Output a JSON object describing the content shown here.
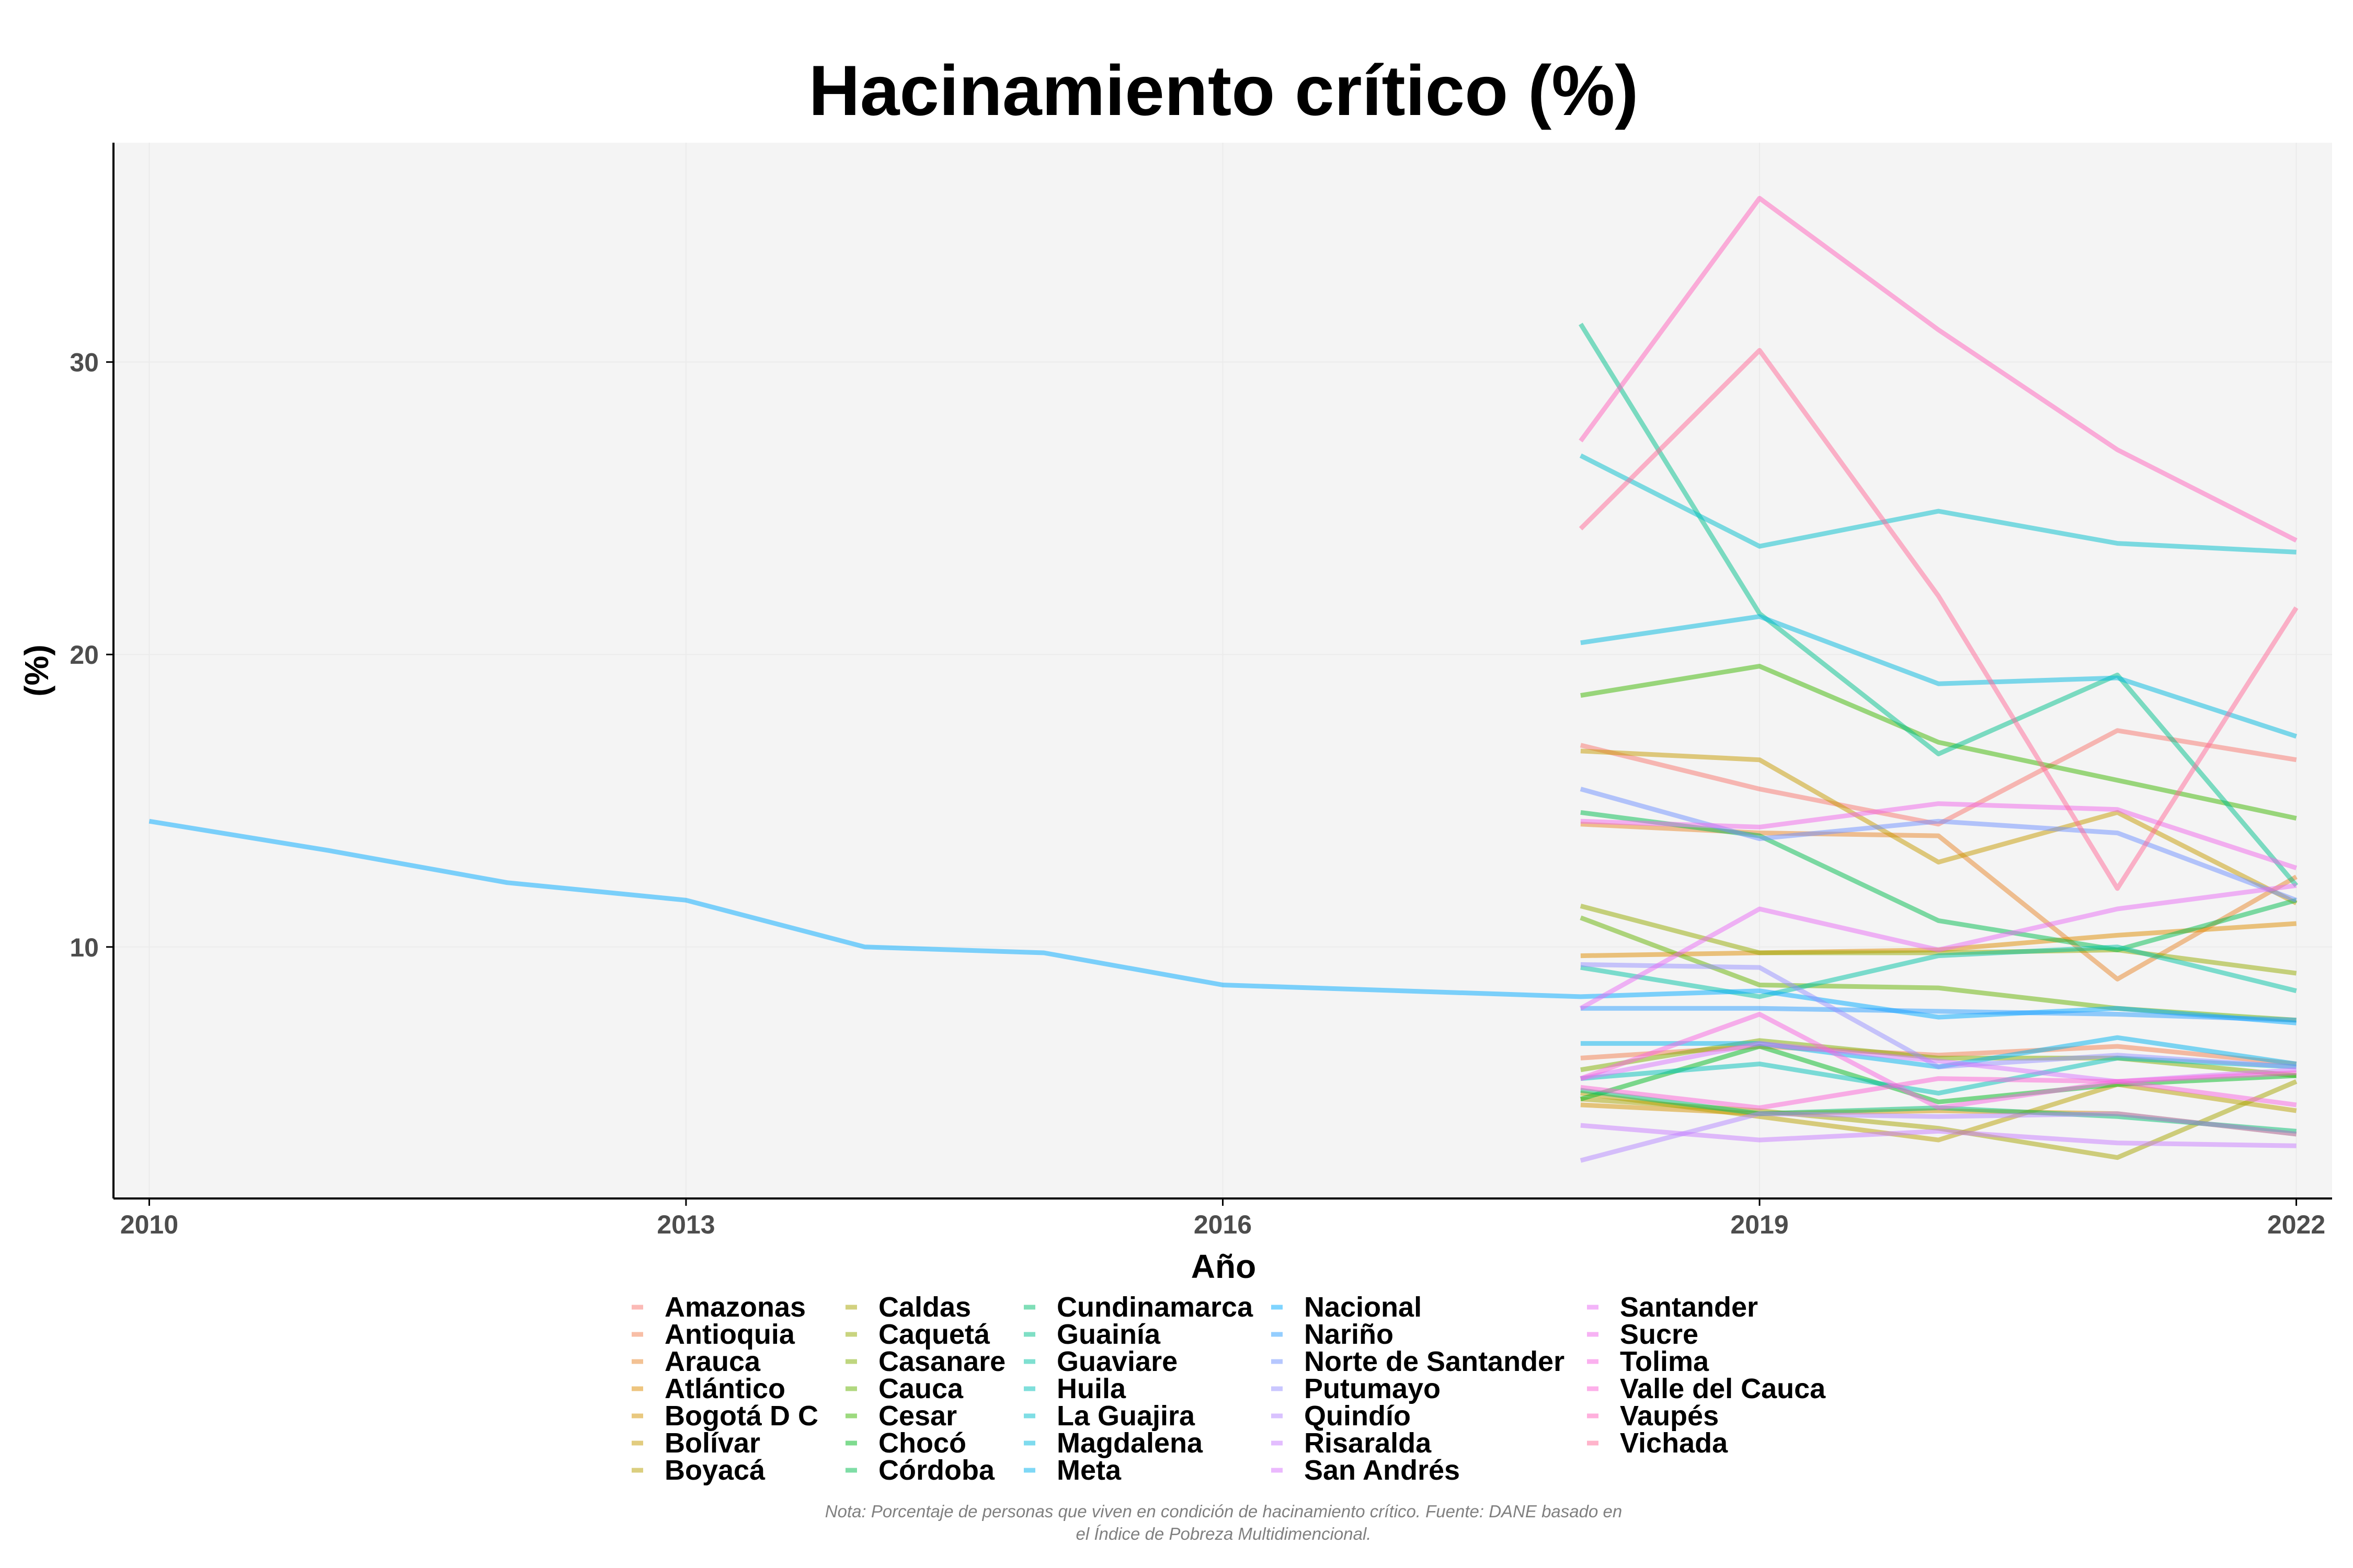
{
  "chart_data": {
    "type": "line",
    "title": "Hacinamiento crítico (%)",
    "xlabel": "Año",
    "ylabel": "(%)",
    "xlim": [
      2009.8,
      2022.2
    ],
    "ylim": [
      1.4,
      37.5
    ],
    "x_ticks": [
      "2010",
      "2013",
      "2016",
      "2019",
      "2022"
    ],
    "y_ticks": [
      "10",
      "20",
      "30"
    ],
    "grid": true,
    "legend_position": "bottom",
    "caption": [
      "Nota: Porcentaje de personas que viven en condición de hacinamiento crítico. Fuente: DANE basado en",
      "el Índice de Pobreza Multidimencional."
    ],
    "series": [
      {
        "name": "Amazonas",
        "color": "#F8766D",
        "x": [
          2018,
          2019,
          2020,
          2021,
          2022
        ],
        "y": [
          16.9,
          15.4,
          14.2,
          17.4,
          16.4
        ]
      },
      {
        "name": "Antioquia",
        "color": "#F17E4E",
        "x": [
          2018,
          2019,
          2020,
          2021,
          2022
        ],
        "y": [
          6.2,
          6.6,
          6.3,
          6.6,
          6.0
        ]
      },
      {
        "name": "Arauca",
        "color": "#E8862A",
        "x": [
          2018,
          2019,
          2020,
          2021,
          2022
        ],
        "y": [
          14.2,
          13.9,
          13.8,
          8.9,
          12.4
        ]
      },
      {
        "name": "Atlántico",
        "color": "#DE8C00",
        "x": [
          2018,
          2019,
          2020,
          2021,
          2022
        ],
        "y": [
          9.7,
          9.8,
          9.9,
          10.4,
          10.8
        ]
      },
      {
        "name": "Bogotá D C",
        "color": "#D39200",
        "x": [
          2018,
          2019,
          2020,
          2021,
          2022
        ],
        "y": [
          4.6,
          4.3,
          4.4,
          4.3,
          3.6
        ]
      },
      {
        "name": "Bolívar",
        "color": "#C59900",
        "x": [
          2018,
          2019,
          2020,
          2021,
          2022
        ],
        "y": [
          16.7,
          16.4,
          12.9,
          14.6,
          11.5
        ]
      },
      {
        "name": "Boyacá",
        "color": "#B79F00",
        "x": [
          2018,
          2019,
          2020,
          2021,
          2022
        ],
        "y": [
          5.0,
          4.2,
          3.4,
          5.3,
          4.4
        ]
      },
      {
        "name": "Caldas",
        "color": "#A6A300",
        "x": [
          2018,
          2019,
          2020,
          2021,
          2022
        ],
        "y": [
          4.8,
          4.4,
          3.8,
          2.8,
          5.4
        ]
      },
      {
        "name": "Caquetá",
        "color": "#94A900",
        "x": [
          2018,
          2019,
          2020,
          2021,
          2022
        ],
        "y": [
          11.4,
          9.8,
          9.8,
          9.9,
          9.1
        ]
      },
      {
        "name": "Casanare",
        "color": "#7FAE00",
        "x": [
          2018,
          2019,
          2020,
          2021,
          2022
        ],
        "y": [
          5.8,
          6.8,
          6.2,
          6.2,
          5.6
        ]
      },
      {
        "name": "Cauca",
        "color": "#64B200",
        "x": [
          2018,
          2019,
          2020,
          2021,
          2022
        ],
        "y": [
          11.0,
          8.7,
          8.6,
          7.9,
          7.5
        ]
      },
      {
        "name": "Cesar",
        "color": "#3CB500",
        "x": [
          2018,
          2019,
          2020,
          2021,
          2022
        ],
        "y": [
          18.6,
          19.6,
          17.0,
          15.7,
          14.4
        ]
      },
      {
        "name": "Chocó",
        "color": "#00B81F",
        "x": [
          2018,
          2019,
          2020,
          2021,
          2022
        ],
        "y": [
          4.8,
          6.6,
          4.7,
          5.3,
          5.6
        ]
      },
      {
        "name": "Córdoba",
        "color": "#00BB4E",
        "x": [
          2018,
          2019,
          2020,
          2021,
          2022
        ],
        "y": [
          14.6,
          13.8,
          10.9,
          9.9,
          11.6
        ]
      },
      {
        "name": "Cundinamarca",
        "color": "#00BE70",
        "x": [
          2018,
          2019,
          2020,
          2021,
          2022
        ],
        "y": [
          5.1,
          4.3,
          4.5,
          4.2,
          3.7
        ]
      },
      {
        "name": "Guainía",
        "color": "#00C08B",
        "x": [
          2018,
          2019,
          2020,
          2021,
          2022
        ],
        "y": [
          31.3,
          21.4,
          16.6,
          19.3,
          12.1
        ]
      },
      {
        "name": "Guaviare",
        "color": "#00C1A3",
        "x": [
          2018,
          2019,
          2020,
          2021,
          2022
        ],
        "y": [
          9.3,
          8.3,
          9.7,
          10.0,
          8.5
        ]
      },
      {
        "name": "Huila",
        "color": "#00C0B8",
        "x": [
          2018,
          2019,
          2020,
          2021,
          2022
        ],
        "y": [
          5.5,
          6.0,
          5.0,
          6.2,
          5.9
        ]
      },
      {
        "name": "La Guajira",
        "color": "#00BDCC",
        "x": [
          2018,
          2019,
          2020,
          2021,
          2022
        ],
        "y": [
          26.8,
          23.7,
          24.9,
          23.8,
          23.5
        ]
      },
      {
        "name": "Magdalena",
        "color": "#00B8DE",
        "x": [
          2018,
          2019,
          2020,
          2021,
          2022
        ],
        "y": [
          20.4,
          21.3,
          19.0,
          19.2,
          17.2
        ]
      },
      {
        "name": "Meta",
        "color": "#00B2EE",
        "x": [
          2018,
          2019,
          2020,
          2021,
          2022
        ],
        "y": [
          6.7,
          6.7,
          5.9,
          6.9,
          6.0
        ]
      },
      {
        "name": "Nacional",
        "color": "#00A9FF",
        "x": [
          2010,
          2011,
          2012,
          2013,
          2014,
          2015,
          2016,
          2018,
          2019,
          2020,
          2021,
          2022
        ],
        "y": [
          14.3,
          13.3,
          12.2,
          11.6,
          10.0,
          9.8,
          8.7,
          8.3,
          8.5,
          7.6,
          7.9,
          7.4
        ]
      },
      {
        "name": "Nariño",
        "color": "#2A9DFF",
        "x": [
          2018,
          2019,
          2020,
          2021,
          2022
        ],
        "y": [
          7.9,
          7.9,
          7.8,
          7.7,
          7.5
        ]
      },
      {
        "name": "Norte de Santander",
        "color": "#6D8FFF",
        "x": [
          2018,
          2019,
          2020,
          2021,
          2022
        ],
        "y": [
          15.4,
          13.7,
          14.3,
          13.9,
          11.6
        ]
      },
      {
        "name": "Putumayo",
        "color": "#9590FF",
        "x": [
          2018,
          2019,
          2020,
          2021,
          2022
        ],
        "y": [
          9.4,
          9.3,
          5.9,
          6.3,
          5.9
        ]
      },
      {
        "name": "Quindío",
        "color": "#B385FF",
        "x": [
          2018,
          2019,
          2020,
          2021,
          2022
        ],
        "y": [
          2.7,
          4.3,
          4.2,
          4.3,
          3.6
        ]
      },
      {
        "name": "Risaralda",
        "color": "#C77CFF",
        "x": [
          2018,
          2019,
          2020,
          2021,
          2022
        ],
        "y": [
          3.9,
          3.4,
          3.7,
          3.3,
          3.2
        ]
      },
      {
        "name": "San Andrés",
        "color": "#D774FD",
        "x": [
          2018,
          2019,
          2020,
          2021,
          2022
        ],
        "y": [
          5.5,
          6.7,
          6.1,
          5.4,
          5.8
        ]
      },
      {
        "name": "Santander",
        "color": "#E76BF3",
        "x": [
          2018,
          2019,
          2020,
          2021,
          2022
        ],
        "y": [
          7.9,
          11.3,
          9.9,
          11.3,
          12.1
        ]
      },
      {
        "name": "Sucre",
        "color": "#F066EA",
        "x": [
          2018,
          2019,
          2020,
          2021,
          2022
        ],
        "y": [
          14.3,
          14.1,
          14.9,
          14.7,
          12.7
        ]
      },
      {
        "name": "Tolima",
        "color": "#F863DF",
        "x": [
          2018,
          2019,
          2020,
          2021,
          2022
        ],
        "y": [
          5.5,
          7.7,
          4.5,
          5.4,
          4.6
        ]
      },
      {
        "name": "Valle del Cauca",
        "color": "#FC61D5",
        "x": [
          2018,
          2019,
          2020,
          2021,
          2022
        ],
        "y": [
          5.2,
          4.5,
          5.5,
          5.4,
          5.7
        ]
      },
      {
        "name": "Vaupés",
        "color": "#FF62BC",
        "x": [
          2018,
          2019,
          2020,
          2021,
          2022
        ],
        "y": [
          27.3,
          35.6,
          31.1,
          27.0,
          23.9
        ]
      },
      {
        "name": "Vichada",
        "color": "#FF6A98",
        "x": [
          2018,
          2019,
          2020,
          2021,
          2022
        ],
        "y": [
          24.3,
          30.4,
          22.0,
          12.0,
          21.6
        ]
      }
    ]
  }
}
